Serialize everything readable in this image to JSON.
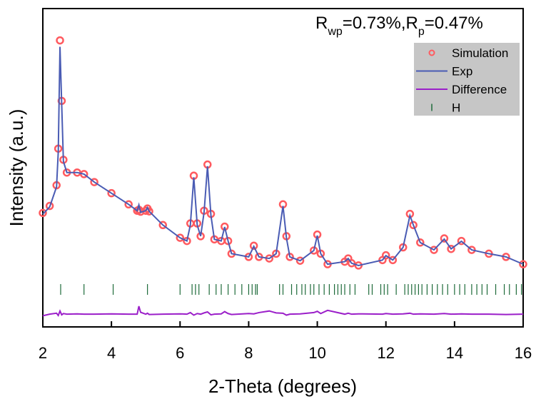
{
  "chart_data": {
    "type": "line",
    "x_label": "2-Theta (degrees)",
    "y_label": "Intensity (a.u.)",
    "annotation": [
      {
        "text": "R"
      },
      {
        "text": "wp",
        "sub": true
      },
      {
        "text": "=0.73%,R"
      },
      {
        "text": "p",
        "sub": true
      },
      {
        "text": "=0.47%"
      }
    ],
    "xlim": [
      2,
      16
    ],
    "xticks": [
      2,
      4,
      6,
      8,
      10,
      12,
      14,
      16
    ],
    "ylim": [
      0,
      100
    ],
    "x": [
      2.0,
      2.2,
      2.4,
      2.45,
      2.5,
      2.55,
      2.6,
      2.7,
      3.0,
      3.2,
      3.5,
      4.0,
      4.5,
      4.75,
      4.8,
      4.85,
      5.0,
      5.05,
      5.1,
      5.5,
      6.0,
      6.2,
      6.3,
      6.4,
      6.5,
      6.6,
      6.7,
      6.8,
      6.9,
      7.0,
      7.2,
      7.3,
      7.4,
      7.5,
      8.0,
      8.15,
      8.3,
      8.6,
      8.8,
      9.0,
      9.1,
      9.2,
      9.5,
      9.9,
      10.0,
      10.1,
      10.3,
      10.8,
      10.9,
      11.0,
      11.2,
      11.9,
      12.0,
      12.2,
      12.5,
      12.7,
      12.8,
      13.0,
      13.4,
      13.7,
      13.9,
      14.2,
      14.5,
      15.0,
      15.5,
      16.0
    ],
    "series": [
      {
        "name": "Simulation",
        "color": "#ff5a5f",
        "style": "circle",
        "values": [
          35.8,
          38,
          44.5,
          56,
          90,
          71,
          52.5,
          48.5,
          48.5,
          48,
          45.5,
          42,
          38.5,
          36.5,
          36.8,
          36.2,
          36.5,
          37.2,
          36.3,
          32,
          28,
          27,
          32.5,
          47.5,
          32.5,
          28.5,
          36.5,
          51,
          35.5,
          27.5,
          27,
          31.5,
          27,
          23,
          22,
          25.5,
          22,
          21.5,
          23,
          38.5,
          28.5,
          22,
          20.8,
          24,
          29,
          23,
          19.7,
          20.5,
          21.5,
          20,
          19.3,
          21,
          22.5,
          21,
          25,
          35.5,
          32,
          26.5,
          24.2,
          27.8,
          24.5,
          27,
          24.2,
          23,
          22,
          19.7
        ]
      },
      {
        "name": "Exp",
        "color": "#4a5cb4",
        "style": "line",
        "values": [
          35.4,
          37.7,
          44,
          55,
          88,
          70,
          52,
          48.5,
          48.5,
          48,
          45.5,
          42,
          38.5,
          36.5,
          38.3,
          36,
          36.5,
          37.5,
          36.3,
          32,
          28,
          27,
          32,
          47,
          32,
          28.5,
          36,
          50.5,
          35,
          27.5,
          27,
          31.4,
          27,
          23,
          22,
          25.3,
          22,
          21.5,
          23,
          38,
          28,
          22,
          20.8,
          24,
          28.7,
          23,
          19.7,
          20.5,
          21.5,
          20,
          19.3,
          21,
          22.4,
          21,
          25,
          35,
          32,
          26.5,
          24.2,
          27.6,
          24.5,
          26.9,
          24.2,
          23,
          22,
          19.7
        ]
      },
      {
        "name": "Difference",
        "color": "#9b1fc9",
        "style": "line",
        "values": [
          3.5,
          4,
          4.3,
          3.6,
          5,
          3.8,
          4.2,
          4,
          4.1,
          4,
          4,
          4.1,
          4,
          4,
          6.5,
          4.6,
          4,
          4.3,
          3.9,
          4,
          4.1,
          4,
          4.5,
          3.7,
          4.2,
          4,
          4.4,
          4.7,
          3.8,
          4,
          4.1,
          4.8,
          4.2,
          3.9,
          4.2,
          4.1,
          4.5,
          5,
          4.4,
          4.3,
          3.7,
          4,
          4.1,
          4.5,
          4.9,
          4.2,
          5.2,
          4,
          4.3,
          4,
          4.1,
          4,
          4.2,
          4,
          4.1,
          4.3,
          4,
          4.1,
          4,
          4.2,
          4,
          4.1,
          4,
          4,
          3.9,
          4
        ]
      },
      {
        "name": "H",
        "color": "#1e6b3a",
        "style": "tick",
        "x": [
          2.52,
          3.2,
          4.05,
          5.05,
          6.0,
          6.35,
          6.45,
          6.55,
          6.85,
          7.05,
          7.2,
          7.4,
          7.6,
          7.8,
          8.0,
          8.1,
          8.2,
          8.25,
          8.9,
          9.0,
          9.25,
          9.4,
          9.55,
          9.65,
          9.8,
          9.9,
          10.05,
          10.2,
          10.35,
          10.5,
          10.6,
          10.7,
          10.8,
          10.95,
          11.1,
          11.5,
          11.6,
          11.85,
          11.95,
          12.05,
          12.3,
          12.55,
          12.65,
          12.75,
          12.85,
          12.95,
          13.05,
          13.2,
          13.35,
          13.5,
          13.65,
          13.8,
          14.0,
          14.15,
          14.3,
          14.5,
          14.65,
          14.8,
          14.95,
          15.2,
          15.45,
          15.6,
          15.8,
          15.95
        ]
      }
    ]
  }
}
